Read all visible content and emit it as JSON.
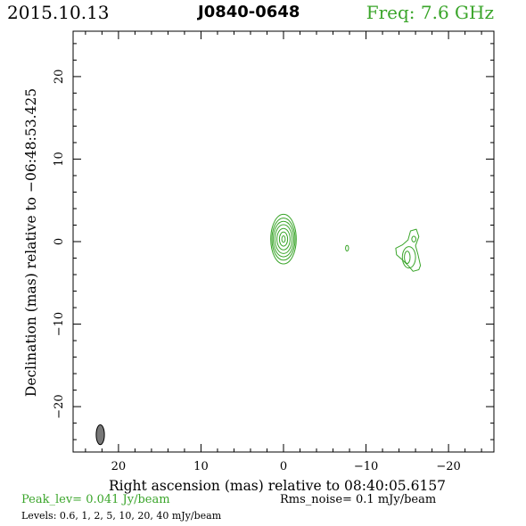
{
  "header": {
    "date": "2015.10.13",
    "source": "J0840-0648",
    "frequency": "Freq: 7.6 GHz"
  },
  "footer": {
    "peak": "Peak_lev=  0.041 Jy/beam",
    "rms": "Rms_noise=   0.1 mJy/beam",
    "levels": "Levels: 0.6,    1,    2,    5,   10,   20,   40 mJy/beam"
  },
  "colors": {
    "contour": "#3aa52a",
    "beam_fill": "#777777",
    "axes": "#000000"
  },
  "chart_data": {
    "type": "contour",
    "title": "J0840-0648",
    "xlabel": "Right ascension (mas) relative to 08:40:05.6157",
    "ylabel": "Declination (mas) relative to −06:48:53.425",
    "xlim": [
      25.5,
      -25.5
    ],
    "ylim": [
      -25.5,
      25.5
    ],
    "xticks": [
      20,
      10,
      0,
      -10,
      -20
    ],
    "xtick_labels": [
      "20",
      "10",
      "0",
      "−10",
      "−20"
    ],
    "yticks": [
      20,
      10,
      0,
      -10,
      -20
    ],
    "ytick_labels": [
      "20",
      "10",
      "0",
      "−10",
      "−20"
    ],
    "contour_levels_mJy": [
      0.6,
      1,
      2,
      5,
      10,
      20,
      40
    ],
    "peak_Jy_per_beam": 0.041,
    "rms_noise_mJy_per_beam": 0.1,
    "beam": {
      "x": 22.2,
      "y": -23.4,
      "major_mas": 2.4,
      "minor_mas": 1.0,
      "pa_deg": 0
    },
    "components": [
      {
        "name": "core",
        "rings": [
          {
            "x": 0.0,
            "y": 0.3,
            "rx": 1.55,
            "ry": 3.0
          },
          {
            "x": 0.0,
            "y": 0.3,
            "rx": 1.4,
            "ry": 2.55
          },
          {
            "x": 0.0,
            "y": 0.3,
            "rx": 1.25,
            "ry": 2.15
          },
          {
            "x": 0.0,
            "y": 0.3,
            "rx": 1.05,
            "ry": 1.75
          },
          {
            "x": 0.0,
            "y": 0.3,
            "rx": 0.8,
            "ry": 1.3
          },
          {
            "x": 0.0,
            "y": 0.3,
            "rx": 0.5,
            "ry": 0.85
          },
          {
            "x": 0.0,
            "y": 0.3,
            "rx": 0.2,
            "ry": 0.4
          }
        ]
      },
      {
        "name": "knot",
        "rings": [
          {
            "x": -7.7,
            "y": -0.8,
            "rx": 0.18,
            "ry": 0.35
          }
        ]
      },
      {
        "name": "jet",
        "outline": [
          [
            -15.4,
            1.3
          ],
          [
            -16.1,
            1.5
          ],
          [
            -16.4,
            0.6
          ],
          [
            -16.0,
            -0.5
          ],
          [
            -16.3,
            -1.6
          ],
          [
            -16.6,
            -2.9
          ],
          [
            -16.4,
            -3.4
          ],
          [
            -15.7,
            -3.6
          ],
          [
            -15.2,
            -3.0
          ],
          [
            -14.5,
            -2.3
          ],
          [
            -13.7,
            -1.6
          ],
          [
            -13.6,
            -0.8
          ],
          [
            -14.4,
            -0.4
          ],
          [
            -15.1,
            0.2
          ]
        ],
        "rings": [
          {
            "x": -15.2,
            "y": -1.9,
            "rx": 0.8,
            "ry": 1.3
          },
          {
            "x": -15.0,
            "y": -1.9,
            "rx": 0.35,
            "ry": 0.75
          },
          {
            "x": -15.8,
            "y": 0.3,
            "rx": 0.25,
            "ry": 0.35
          }
        ]
      }
    ]
  }
}
